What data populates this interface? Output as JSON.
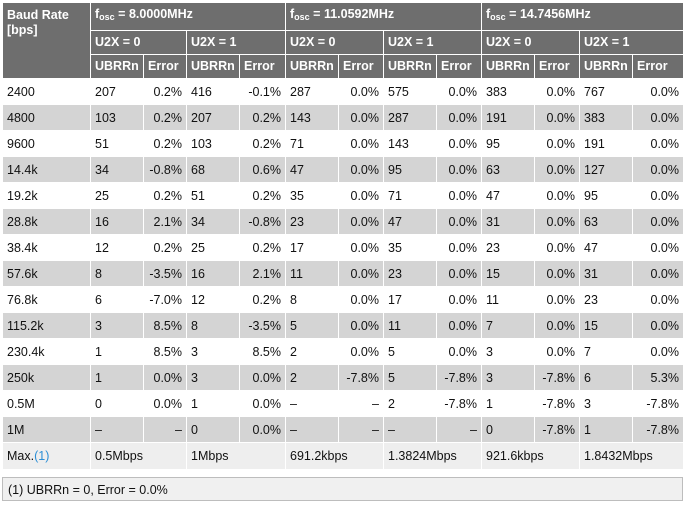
{
  "header": {
    "baud_label": "Baud Rate",
    "baud_unit": "[bps]",
    "f_prefix": "f",
    "f_sub": "osc",
    "frequencies": [
      "8.0000MHz",
      "11.0592MHz",
      "14.7456MHz"
    ],
    "u2x0": "U2X = 0",
    "u2x1": "U2X = 1",
    "ubrr": "UBRRn",
    "error": "Error"
  },
  "rows": [
    {
      "baud": "2400",
      "cells": [
        "207",
        "0.2%",
        "416",
        "-0.1%",
        "287",
        "0.0%",
        "575",
        "0.0%",
        "383",
        "0.0%",
        "767",
        "0.0%"
      ]
    },
    {
      "baud": "4800",
      "cells": [
        "103",
        "0.2%",
        "207",
        "0.2%",
        "143",
        "0.0%",
        "287",
        "0.0%",
        "191",
        "0.0%",
        "383",
        "0.0%"
      ]
    },
    {
      "baud": "9600",
      "cells": [
        "51",
        "0.2%",
        "103",
        "0.2%",
        "71",
        "0.0%",
        "143",
        "0.0%",
        "95",
        "0.0%",
        "191",
        "0.0%"
      ]
    },
    {
      "baud": "14.4k",
      "cells": [
        "34",
        "-0.8%",
        "68",
        "0.6%",
        "47",
        "0.0%",
        "95",
        "0.0%",
        "63",
        "0.0%",
        "127",
        "0.0%"
      ]
    },
    {
      "baud": "19.2k",
      "cells": [
        "25",
        "0.2%",
        "51",
        "0.2%",
        "35",
        "0.0%",
        "71",
        "0.0%",
        "47",
        "0.0%",
        "95",
        "0.0%"
      ]
    },
    {
      "baud": "28.8k",
      "cells": [
        "16",
        "2.1%",
        "34",
        "-0.8%",
        "23",
        "0.0%",
        "47",
        "0.0%",
        "31",
        "0.0%",
        "63",
        "0.0%"
      ]
    },
    {
      "baud": "38.4k",
      "cells": [
        "12",
        "0.2%",
        "25",
        "0.2%",
        "17",
        "0.0%",
        "35",
        "0.0%",
        "23",
        "0.0%",
        "47",
        "0.0%"
      ]
    },
    {
      "baud": "57.6k",
      "cells": [
        "8",
        "-3.5%",
        "16",
        "2.1%",
        "11",
        "0.0%",
        "23",
        "0.0%",
        "15",
        "0.0%",
        "31",
        "0.0%"
      ]
    },
    {
      "baud": "76.8k",
      "cells": [
        "6",
        "-7.0%",
        "12",
        "0.2%",
        "8",
        "0.0%",
        "17",
        "0.0%",
        "11",
        "0.0%",
        "23",
        "0.0%"
      ]
    },
    {
      "baud": "115.2k",
      "cells": [
        "3",
        "8.5%",
        "8",
        "-3.5%",
        "5",
        "0.0%",
        "11",
        "0.0%",
        "7",
        "0.0%",
        "15",
        "0.0%"
      ]
    },
    {
      "baud": "230.4k",
      "cells": [
        "1",
        "8.5%",
        "3",
        "8.5%",
        "2",
        "0.0%",
        "5",
        "0.0%",
        "3",
        "0.0%",
        "7",
        "0.0%"
      ]
    },
    {
      "baud": "250k",
      "cells": [
        "1",
        "0.0%",
        "3",
        "0.0%",
        "2",
        "-7.8%",
        "5",
        "-7.8%",
        "3",
        "-7.8%",
        "6",
        "5.3%"
      ]
    },
    {
      "baud": "0.5M",
      "cells": [
        "0",
        "0.0%",
        "1",
        "0.0%",
        "–",
        "–",
        "2",
        "-7.8%",
        "1",
        "-7.8%",
        "3",
        "-7.8%"
      ]
    },
    {
      "baud": "1M",
      "cells": [
        "–",
        "–",
        "0",
        "0.0%",
        "–",
        "–",
        "–",
        "–",
        "0",
        "-7.8%",
        "1",
        "-7.8%"
      ]
    }
  ],
  "max_row": {
    "label": "Max.",
    "note_ref": "(1)",
    "values": [
      "0.5Mbps",
      "1Mbps",
      "691.2kbps",
      "1.3824Mbps",
      "921.6kbps",
      "1.8432Mbps"
    ]
  },
  "footnote": "(1) UBRRn = 0, Error = 0.0%",
  "colors": {
    "header_bg": "#6e6e6e",
    "row_alt": "#d4d4d4",
    "link": "#2c8fd6"
  }
}
